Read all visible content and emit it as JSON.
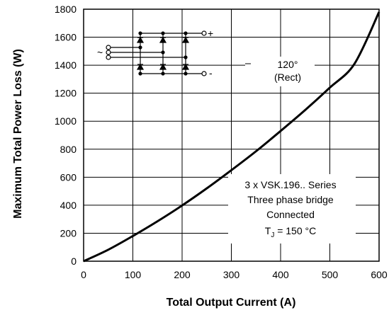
{
  "chart_data": {
    "type": "line",
    "xlabel": "Total Output Current (A)",
    "ylabel": "Maximum Total Power Loss (W)",
    "xlim": [
      0,
      600
    ],
    "ylim": [
      0,
      1800
    ],
    "xticks": [
      0,
      100,
      200,
      300,
      400,
      500,
      600
    ],
    "yticks": [
      0,
      200,
      400,
      600,
      800,
      1000,
      1200,
      1400,
      1600,
      1800
    ],
    "grid": true,
    "series": [
      {
        "x": [
          0,
          50,
          100,
          150,
          200,
          250,
          300,
          350,
          400,
          450,
          500,
          550,
          600
        ],
        "y": [
          0,
          82,
          180,
          285,
          398,
          520,
          650,
          785,
          930,
          1080,
          1240,
          1410,
          1780
        ]
      }
    ],
    "annotations": {
      "conduction": {
        "angle": "120°",
        "mode": "(Rect)"
      },
      "device": {
        "line1": "3 x VSK.196.. Series",
        "line2": "Three phase bridge",
        "line3": "Connected",
        "tj_symbol": "T",
        "tj_sub": "J",
        "tj_value": " = 150 °C"
      },
      "schematic": {
        "plus": "+",
        "minus": "-",
        "ac": "~"
      }
    },
    "colors": {
      "curve": "#000000",
      "grid": "#000000"
    }
  }
}
